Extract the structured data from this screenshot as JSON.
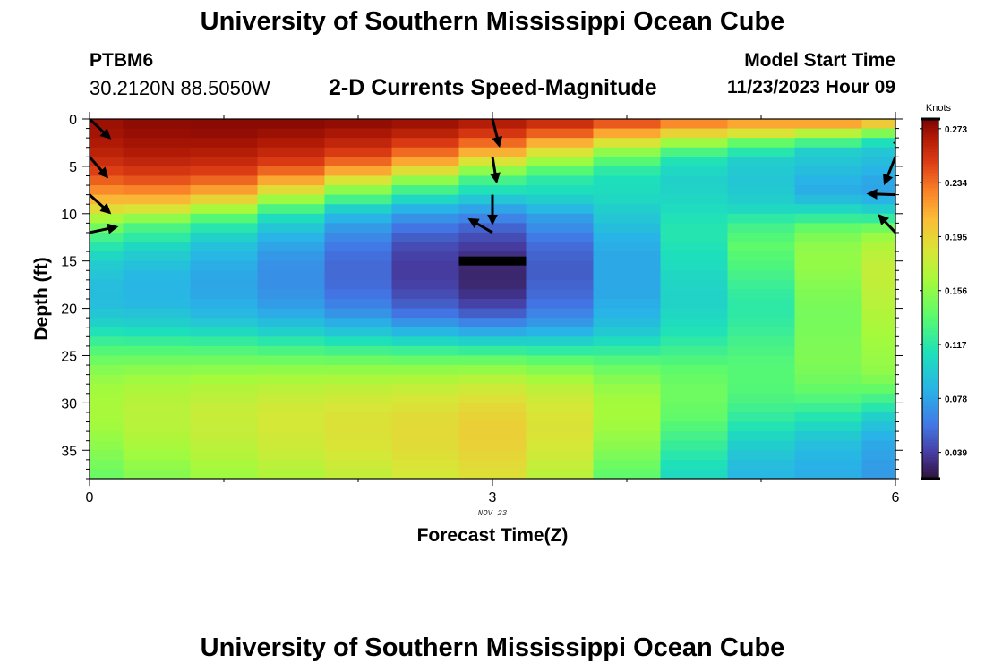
{
  "header": {
    "title": "University of Southern Mississippi Ocean Cube",
    "station": "PTBM6",
    "coordinates": "30.2120N  88.5050W",
    "subtitle": "2-D Currents Speed-Magnitude",
    "model_start_label": "Model Start Time",
    "model_start_value": "11/23/2023 Hour 09"
  },
  "footer": {
    "title": "University of Southern Mississippi Ocean Cube"
  },
  "chart_data": {
    "type": "heatmap",
    "title": "2-D Currents Speed-Magnitude",
    "xlabel": "Forecast Time(Z)",
    "ylabel": "Depth (ft)",
    "xlim": [
      0,
      6
    ],
    "ylim": [
      38,
      0
    ],
    "x_ticks": [
      0,
      3,
      6
    ],
    "x_tick_labels": [
      "0",
      "3",
      "6"
    ],
    "x_sublabel": "NOV 23",
    "y_ticks": [
      0,
      5,
      10,
      15,
      20,
      25,
      30,
      35
    ],
    "colorbar": {
      "unit_label": "Knots",
      "min": 0.02,
      "max": 0.28,
      "ticks": [
        0.273,
        0.234,
        0.195,
        0.156,
        0.117,
        0.078,
        0.039
      ],
      "tick_labels": [
        "0.273",
        "0.234",
        "0.195",
        "0.156",
        "0.117",
        "0.078",
        "0.039"
      ]
    },
    "x_columns": [
      0,
      0.5,
      1,
      1.5,
      2,
      2.5,
      3,
      3.5,
      4,
      4.5,
      5,
      5.5,
      6
    ],
    "depths": [
      0,
      1,
      2,
      3,
      4,
      5,
      6,
      7,
      8,
      9,
      10,
      11,
      12,
      13,
      14,
      15,
      16,
      17,
      18,
      19,
      20,
      21,
      22,
      23,
      24,
      25,
      26,
      27,
      28,
      29,
      30,
      31,
      32,
      33,
      34,
      35,
      36,
      37
    ],
    "speed_knots": [
      [
        0.272,
        0.275,
        0.276,
        0.276,
        0.274,
        0.271,
        0.265,
        0.255,
        0.24,
        0.225,
        0.215,
        0.215,
        0.2
      ],
      [
        0.27,
        0.273,
        0.274,
        0.272,
        0.268,
        0.262,
        0.252,
        0.238,
        0.215,
        0.195,
        0.185,
        0.17,
        0.15
      ],
      [
        0.267,
        0.27,
        0.27,
        0.266,
        0.26,
        0.25,
        0.235,
        0.212,
        0.185,
        0.16,
        0.14,
        0.128,
        0.11
      ],
      [
        0.262,
        0.266,
        0.265,
        0.259,
        0.25,
        0.235,
        0.212,
        0.185,
        0.155,
        0.13,
        0.115,
        0.1,
        0.095
      ],
      [
        0.256,
        0.26,
        0.258,
        0.25,
        0.236,
        0.215,
        0.185,
        0.16,
        0.135,
        0.112,
        0.1,
        0.095,
        0.09
      ],
      [
        0.248,
        0.252,
        0.249,
        0.236,
        0.215,
        0.188,
        0.155,
        0.135,
        0.118,
        0.105,
        0.097,
        0.09,
        0.085
      ],
      [
        0.238,
        0.242,
        0.236,
        0.215,
        0.185,
        0.155,
        0.128,
        0.117,
        0.11,
        0.102,
        0.095,
        0.085,
        0.08
      ],
      [
        0.225,
        0.228,
        0.218,
        0.19,
        0.155,
        0.128,
        0.112,
        0.11,
        0.108,
        0.103,
        0.097,
        0.082,
        0.078
      ],
      [
        0.21,
        0.21,
        0.195,
        0.16,
        0.128,
        0.105,
        0.095,
        0.1,
        0.105,
        0.105,
        0.1,
        0.09,
        0.085
      ],
      [
        0.19,
        0.185,
        0.165,
        0.13,
        0.102,
        0.085,
        0.078,
        0.088,
        0.1,
        0.108,
        0.106,
        0.105,
        0.1
      ],
      [
        0.165,
        0.155,
        0.135,
        0.108,
        0.085,
        0.07,
        0.064,
        0.075,
        0.095,
        0.112,
        0.118,
        0.122,
        0.12
      ],
      [
        0.145,
        0.13,
        0.115,
        0.095,
        0.074,
        0.058,
        0.052,
        0.068,
        0.09,
        0.114,
        0.128,
        0.14,
        0.145
      ],
      [
        0.128,
        0.118,
        0.102,
        0.085,
        0.066,
        0.05,
        0.044,
        0.06,
        0.085,
        0.114,
        0.134,
        0.15,
        0.16
      ],
      [
        0.115,
        0.106,
        0.092,
        0.078,
        0.06,
        0.044,
        0.038,
        0.055,
        0.082,
        0.112,
        0.138,
        0.155,
        0.168
      ],
      [
        0.105,
        0.098,
        0.086,
        0.073,
        0.056,
        0.04,
        0.033,
        0.052,
        0.08,
        0.11,
        0.135,
        0.157,
        0.172
      ],
      [
        0.098,
        0.092,
        0.082,
        0.07,
        0.054,
        0.038,
        0.03,
        0.05,
        0.08,
        0.108,
        0.132,
        0.157,
        0.175
      ],
      [
        0.094,
        0.088,
        0.08,
        0.069,
        0.054,
        0.038,
        0.029,
        0.05,
        0.08,
        0.106,
        0.128,
        0.155,
        0.175
      ],
      [
        0.091,
        0.086,
        0.079,
        0.069,
        0.055,
        0.04,
        0.03,
        0.052,
        0.08,
        0.104,
        0.124,
        0.152,
        0.174
      ],
      [
        0.09,
        0.086,
        0.08,
        0.071,
        0.058,
        0.044,
        0.034,
        0.054,
        0.08,
        0.103,
        0.12,
        0.15,
        0.172
      ],
      [
        0.091,
        0.088,
        0.083,
        0.075,
        0.063,
        0.05,
        0.04,
        0.058,
        0.082,
        0.103,
        0.118,
        0.148,
        0.17
      ],
      [
        0.095,
        0.093,
        0.088,
        0.081,
        0.071,
        0.058,
        0.05,
        0.064,
        0.085,
        0.105,
        0.118,
        0.147,
        0.168
      ],
      [
        0.102,
        0.1,
        0.096,
        0.09,
        0.082,
        0.071,
        0.064,
        0.073,
        0.09,
        0.108,
        0.12,
        0.147,
        0.166
      ],
      [
        0.112,
        0.11,
        0.107,
        0.102,
        0.095,
        0.087,
        0.081,
        0.085,
        0.097,
        0.112,
        0.123,
        0.148,
        0.164
      ],
      [
        0.123,
        0.122,
        0.12,
        0.116,
        0.111,
        0.105,
        0.101,
        0.101,
        0.108,
        0.118,
        0.127,
        0.149,
        0.162
      ],
      [
        0.134,
        0.134,
        0.133,
        0.13,
        0.127,
        0.124,
        0.122,
        0.119,
        0.12,
        0.125,
        0.13,
        0.15,
        0.16
      ],
      [
        0.144,
        0.145,
        0.145,
        0.144,
        0.143,
        0.141,
        0.141,
        0.137,
        0.133,
        0.132,
        0.133,
        0.15,
        0.158
      ],
      [
        0.152,
        0.154,
        0.155,
        0.156,
        0.156,
        0.156,
        0.157,
        0.152,
        0.144,
        0.138,
        0.135,
        0.148,
        0.156
      ],
      [
        0.158,
        0.161,
        0.163,
        0.165,
        0.166,
        0.167,
        0.17,
        0.164,
        0.152,
        0.142,
        0.135,
        0.145,
        0.15
      ],
      [
        0.162,
        0.166,
        0.169,
        0.172,
        0.174,
        0.176,
        0.18,
        0.173,
        0.158,
        0.144,
        0.134,
        0.14,
        0.14
      ],
      [
        0.164,
        0.169,
        0.173,
        0.177,
        0.18,
        0.183,
        0.187,
        0.179,
        0.162,
        0.144,
        0.131,
        0.133,
        0.128
      ],
      [
        0.165,
        0.171,
        0.176,
        0.181,
        0.184,
        0.187,
        0.192,
        0.183,
        0.163,
        0.142,
        0.126,
        0.124,
        0.115
      ],
      [
        0.164,
        0.171,
        0.177,
        0.182,
        0.186,
        0.19,
        0.195,
        0.185,
        0.163,
        0.139,
        0.12,
        0.114,
        0.102
      ],
      [
        0.162,
        0.17,
        0.176,
        0.182,
        0.187,
        0.191,
        0.197,
        0.186,
        0.161,
        0.134,
        0.113,
        0.105,
        0.092
      ],
      [
        0.159,
        0.168,
        0.175,
        0.181,
        0.186,
        0.191,
        0.197,
        0.185,
        0.158,
        0.128,
        0.106,
        0.097,
        0.085
      ],
      [
        0.155,
        0.165,
        0.172,
        0.179,
        0.185,
        0.19,
        0.196,
        0.183,
        0.154,
        0.122,
        0.1,
        0.091,
        0.08
      ],
      [
        0.151,
        0.161,
        0.169,
        0.176,
        0.182,
        0.188,
        0.194,
        0.18,
        0.149,
        0.116,
        0.095,
        0.087,
        0.077
      ],
      [
        0.147,
        0.157,
        0.165,
        0.172,
        0.179,
        0.185,
        0.191,
        0.176,
        0.144,
        0.111,
        0.091,
        0.084,
        0.075
      ],
      [
        0.143,
        0.153,
        0.161,
        0.168,
        0.175,
        0.182,
        0.188,
        0.172,
        0.139,
        0.107,
        0.088,
        0.082,
        0.074
      ]
    ],
    "annotation_bar": {
      "x_start": 2.75,
      "x_end": 3.25,
      "depth": 15
    },
    "vectors": [
      {
        "x": 0,
        "depth": 0,
        "dx": 0.15,
        "ddepth": 2
      },
      {
        "x": 0,
        "depth": 4,
        "dx": 0.13,
        "ddepth": 2.1
      },
      {
        "x": 0,
        "depth": 8,
        "dx": 0.15,
        "ddepth": 1.9
      },
      {
        "x": 0,
        "depth": 12,
        "dx": 0.2,
        "ddepth": -0.6
      },
      {
        "x": 3,
        "depth": 0,
        "dx": 0.05,
        "ddepth": 2.8
      },
      {
        "x": 3,
        "depth": 4,
        "dx": 0.03,
        "ddepth": 2.6
      },
      {
        "x": 3,
        "depth": 8,
        "dx": 0,
        "ddepth": 3
      },
      {
        "x": 3,
        "depth": 12,
        "dx": -0.17,
        "ddepth": -1.4
      },
      {
        "x": 6,
        "depth": 2,
        "dx": 0.05,
        "ddepth": 0.9
      },
      {
        "x": 6,
        "depth": 4,
        "dx": -0.08,
        "ddepth": 2.8
      },
      {
        "x": 6,
        "depth": 8,
        "dx": -0.2,
        "ddepth": -0.1
      },
      {
        "x": 6,
        "depth": 12,
        "dx": -0.12,
        "ddepth": -1.8
      }
    ]
  }
}
